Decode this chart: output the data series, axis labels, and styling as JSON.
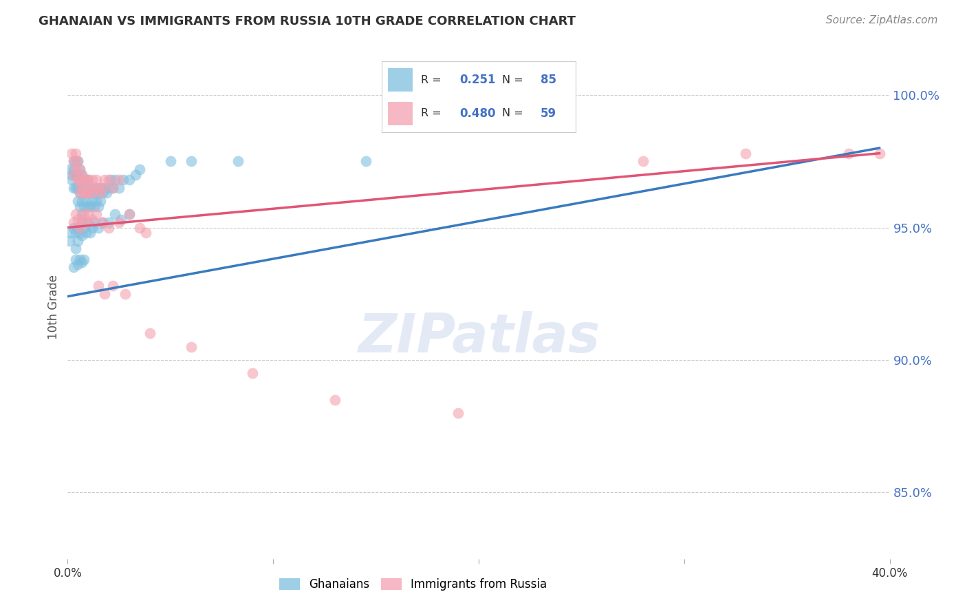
{
  "title": "GHANAIAN VS IMMIGRANTS FROM RUSSIA 10TH GRADE CORRELATION CHART",
  "source": "Source: ZipAtlas.com",
  "ylabel": "10th Grade",
  "ytick_labels": [
    "85.0%",
    "90.0%",
    "95.0%",
    "100.0%"
  ],
  "ytick_values": [
    0.85,
    0.9,
    0.95,
    1.0
  ],
  "legend_label1": "Ghanaians",
  "legend_label2": "Immigrants from Russia",
  "r1": 0.251,
  "n1": 85,
  "r2": 0.48,
  "n2": 59,
  "blue_color": "#7fbfdf",
  "pink_color": "#f4a0b0",
  "blue_line_color": "#3a7abf",
  "pink_line_color": "#e05575",
  "xmin": 0.0,
  "xmax": 0.4,
  "ymin": 0.825,
  "ymax": 1.015,
  "blue_x": [
    0.001,
    0.002,
    0.002,
    0.003,
    0.003,
    0.003,
    0.004,
    0.004,
    0.004,
    0.005,
    0.005,
    0.005,
    0.005,
    0.006,
    0.006,
    0.006,
    0.006,
    0.007,
    0.007,
    0.007,
    0.007,
    0.008,
    0.008,
    0.008,
    0.009,
    0.009,
    0.01,
    0.01,
    0.01,
    0.011,
    0.011,
    0.012,
    0.012,
    0.013,
    0.013,
    0.014,
    0.014,
    0.015,
    0.015,
    0.016,
    0.016,
    0.017,
    0.018,
    0.019,
    0.02,
    0.021,
    0.022,
    0.023,
    0.025,
    0.027,
    0.03,
    0.033,
    0.001,
    0.002,
    0.003,
    0.004,
    0.004,
    0.005,
    0.005,
    0.006,
    0.007,
    0.007,
    0.008,
    0.009,
    0.01,
    0.011,
    0.012,
    0.013,
    0.015,
    0.017,
    0.02,
    0.023,
    0.026,
    0.03,
    0.003,
    0.004,
    0.005,
    0.006,
    0.007,
    0.008,
    0.035,
    0.05,
    0.06,
    0.083,
    0.145
  ],
  "blue_y": [
    0.972,
    0.97,
    0.968,
    0.975,
    0.972,
    0.965,
    0.975,
    0.97,
    0.965,
    0.975,
    0.97,
    0.965,
    0.96,
    0.972,
    0.968,
    0.963,
    0.958,
    0.97,
    0.965,
    0.96,
    0.955,
    0.968,
    0.963,
    0.958,
    0.965,
    0.96,
    0.968,
    0.963,
    0.958,
    0.963,
    0.958,
    0.965,
    0.96,
    0.963,
    0.958,
    0.965,
    0.96,
    0.963,
    0.958,
    0.965,
    0.96,
    0.963,
    0.965,
    0.963,
    0.965,
    0.968,
    0.965,
    0.968,
    0.965,
    0.968,
    0.968,
    0.97,
    0.945,
    0.948,
    0.95,
    0.948,
    0.942,
    0.95,
    0.945,
    0.948,
    0.952,
    0.947,
    0.95,
    0.948,
    0.952,
    0.948,
    0.95,
    0.952,
    0.95,
    0.952,
    0.952,
    0.955,
    0.953,
    0.955,
    0.935,
    0.938,
    0.936,
    0.938,
    0.937,
    0.938,
    0.972,
    0.975,
    0.975,
    0.975,
    0.975
  ],
  "pink_x": [
    0.002,
    0.003,
    0.003,
    0.004,
    0.004,
    0.005,
    0.005,
    0.006,
    0.006,
    0.006,
    0.007,
    0.007,
    0.008,
    0.008,
    0.009,
    0.009,
    0.01,
    0.01,
    0.011,
    0.012,
    0.012,
    0.013,
    0.014,
    0.015,
    0.016,
    0.017,
    0.018,
    0.02,
    0.022,
    0.025,
    0.003,
    0.004,
    0.005,
    0.006,
    0.007,
    0.008,
    0.009,
    0.01,
    0.012,
    0.014,
    0.017,
    0.02,
    0.025,
    0.03,
    0.035,
    0.038,
    0.015,
    0.018,
    0.022,
    0.028,
    0.04,
    0.06,
    0.09,
    0.13,
    0.19,
    0.28,
    0.33,
    0.38,
    0.395
  ],
  "pink_y": [
    0.978,
    0.975,
    0.97,
    0.978,
    0.972,
    0.975,
    0.968,
    0.972,
    0.967,
    0.963,
    0.97,
    0.965,
    0.968,
    0.963,
    0.968,
    0.963,
    0.968,
    0.963,
    0.965,
    0.968,
    0.963,
    0.965,
    0.968,
    0.965,
    0.963,
    0.965,
    0.968,
    0.968,
    0.965,
    0.968,
    0.952,
    0.955,
    0.953,
    0.95,
    0.953,
    0.955,
    0.952,
    0.955,
    0.953,
    0.955,
    0.952,
    0.95,
    0.952,
    0.955,
    0.95,
    0.948,
    0.928,
    0.925,
    0.928,
    0.925,
    0.91,
    0.905,
    0.895,
    0.885,
    0.88,
    0.975,
    0.978,
    0.978,
    0.978
  ]
}
